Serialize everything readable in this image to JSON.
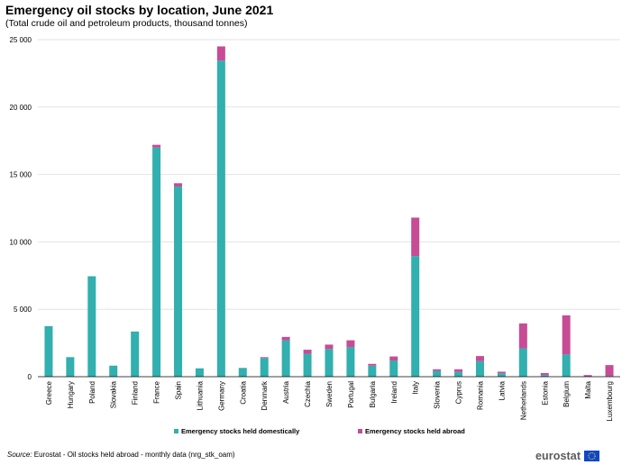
{
  "title": "Emergency oil stocks by location, June 2021",
  "subtitle": "(Total crude oil and petroleum products, thousand tonnes)",
  "footer": {
    "source_label": "Source:",
    "source_text": " Eurostat - Oil stocks held abroad - monthly data (nrg_stk_oam)"
  },
  "logo": {
    "text": "eurostat",
    "flag_icon": "eu-flag-icon"
  },
  "chart_data": {
    "type": "bar",
    "stacked": true,
    "title": "Emergency oil stocks by location, June 2021",
    "subtitle": "(Total crude oil and petroleum products, thousand tonnes)",
    "ylim": [
      0,
      25000
    ],
    "yticks": [
      0,
      5000,
      10000,
      15000,
      20000,
      25000
    ],
    "ytick_labels": [
      "0",
      "5 000",
      "10 000",
      "15 000",
      "20 000",
      "25 000"
    ],
    "grid": true,
    "legend_position": "bottom",
    "categories": [
      "Greece",
      "Hungary",
      "Poland",
      "Slovakia",
      "Finland",
      "France",
      "Spain",
      "Lithuania",
      "Germany",
      "Croatia",
      "Denmark",
      "Austria",
      "Czechia",
      "Sweden",
      "Portugal",
      "Bulgaria",
      "Ireland",
      "Italy",
      "Slovenia",
      "Cyprus",
      "Romania",
      "Latvia",
      "Netherlands",
      "Estonia",
      "Belgium",
      "Malta",
      "Luxembourg"
    ],
    "series": [
      {
        "name": "Emergency stocks held domestically",
        "color": "#32afaf",
        "values": [
          3750,
          1450,
          7450,
          820,
          3350,
          17000,
          14100,
          620,
          23450,
          650,
          1380,
          2700,
          1700,
          2050,
          2200,
          820,
          1200,
          8950,
          430,
          350,
          1150,
          250,
          2100,
          120,
          1650,
          0,
          60
        ]
      },
      {
        "name": "Emergency stocks held abroad",
        "color": "#c84b96",
        "values": [
          0,
          0,
          0,
          0,
          0,
          200,
          250,
          0,
          1050,
          0,
          70,
          250,
          300,
          330,
          500,
          130,
          300,
          2850,
          120,
          200,
          380,
          120,
          1850,
          150,
          2900,
          120,
          800
        ]
      }
    ]
  }
}
